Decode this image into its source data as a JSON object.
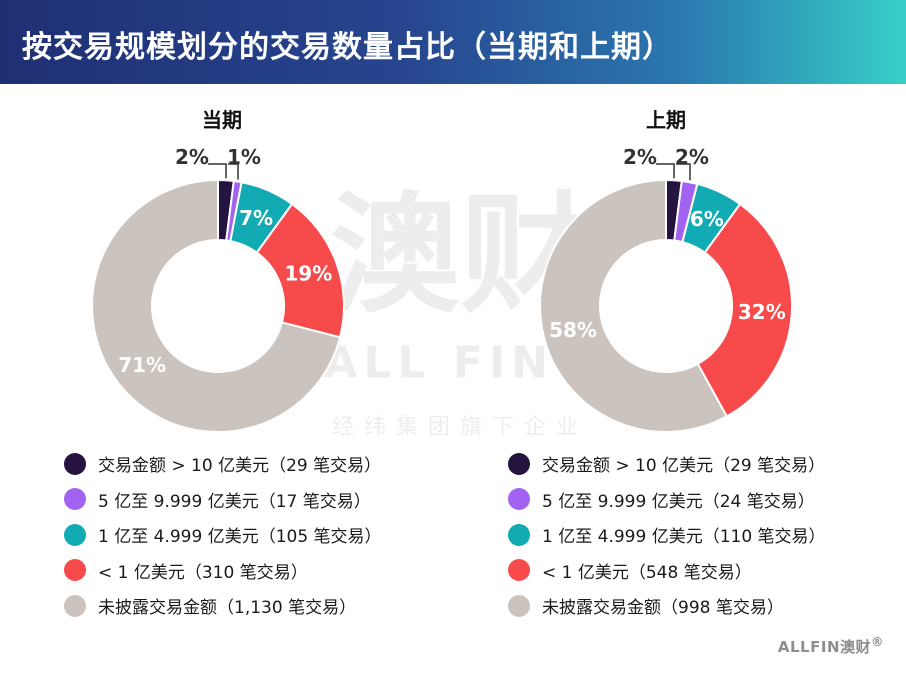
{
  "header": {
    "title": "按交易规模划分的交易数量占比（当期和上期）"
  },
  "watermark": {
    "big": "澳财",
    "en": "ALL FIN",
    "reg": "®",
    "tail": "经纬集团旗下企业"
  },
  "logo": {
    "text": "ALLFIN澳财",
    "reg": "®"
  },
  "colors": [
    "#24143f",
    "#a163f0",
    "#12aab3",
    "#f74a4a",
    "#cbc3be"
  ],
  "chart_data": [
    {
      "type": "pie",
      "donut": true,
      "title": "当期",
      "values": [
        2,
        1,
        7,
        19,
        71
      ],
      "value_labels": [
        "2%",
        "1%",
        "7%",
        "19%",
        "71%"
      ],
      "legend": [
        "交易金额 > 10 亿美元（29 笔交易）",
        "5 亿至 9.999 亿美元（17 笔交易）",
        "1 亿至 4.999 亿美元（105 笔交易）",
        "< 1 亿美元（310 笔交易）",
        "未披露交易金额（1,130 笔交易）"
      ]
    },
    {
      "type": "pie",
      "donut": true,
      "title": "上期",
      "values": [
        2,
        2,
        6,
        32,
        58
      ],
      "value_labels": [
        "2%",
        "2%",
        "6%",
        "32%",
        "58%"
      ],
      "legend": [
        "交易金额 > 10 亿美元（29 笔交易）",
        "5 亿至 9.999 亿美元（24 笔交易）",
        "1 亿至 4.999 亿美元（110 笔交易）",
        "< 1 亿美元（548 笔交易）",
        "未披露交易金额（998 笔交易）"
      ]
    }
  ]
}
